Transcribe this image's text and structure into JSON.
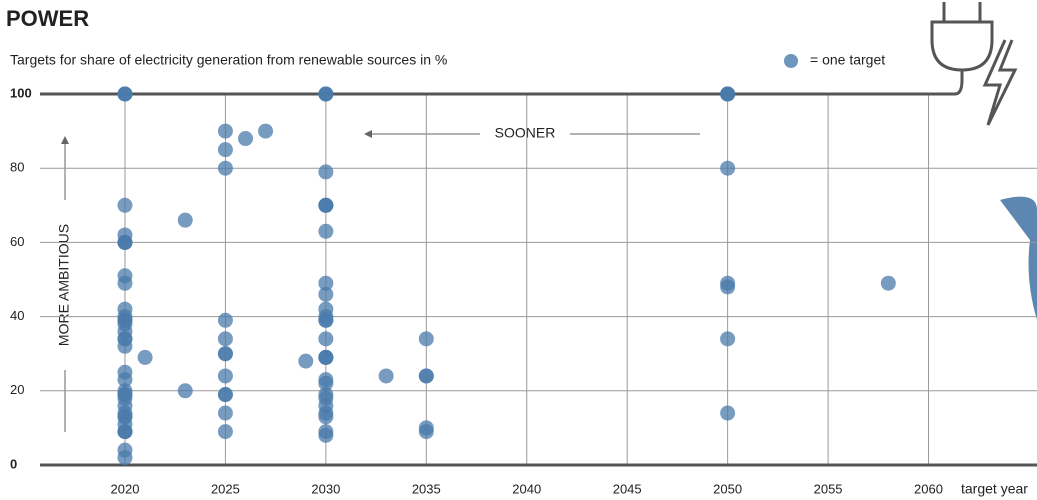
{
  "chart_data": {
    "type": "scatter",
    "title": "POWER",
    "subtitle": "Targets for share of electricity generation from renewable sources in %",
    "legend_label": "= one target",
    "x_label": "target year",
    "annotations": [
      "SOONER",
      "MORE AMBITIOUS"
    ],
    "color": "#4a7bab",
    "xlim": [
      2015.8,
      2065.4
    ],
    "ylim": [
      0,
      100
    ],
    "xticks": [
      2020,
      2025,
      2030,
      2035,
      2040,
      2045,
      2050,
      2055,
      2060
    ],
    "yticks": [
      0,
      20,
      40,
      60,
      80,
      100
    ],
    "grid": true,
    "x": [
      2020,
      2020,
      2020,
      2020,
      2020,
      2020,
      2020,
      2020,
      2020,
      2020,
      2020,
      2020,
      2020,
      2020,
      2020,
      2020,
      2020,
      2020,
      2020,
      2020,
      2020,
      2020,
      2020,
      2020,
      2020,
      2020,
      2020,
      2020,
      2020,
      2020,
      2020,
      2020,
      2020,
      2020,
      2020,
      2021,
      2023,
      2023,
      2025,
      2025,
      2025,
      2025,
      2025,
      2025,
      2025,
      2025,
      2025,
      2025,
      2025,
      2025,
      2026,
      2027,
      2029,
      2030,
      2030,
      2030,
      2030,
      2030,
      2030,
      2030,
      2030,
      2030,
      2030,
      2030,
      2030,
      2030,
      2030,
      2030,
      2030,
      2030,
      2030,
      2030,
      2030,
      2030,
      2030,
      2030,
      2030,
      2030,
      2030,
      2030,
      2033,
      2035,
      2035,
      2035,
      2035,
      2035,
      2050,
      2050,
      2050,
      2050,
      2050,
      2050,
      2050,
      2050,
      2050,
      2058
    ],
    "values": [
      100,
      100,
      100,
      70,
      62,
      60,
      60,
      60,
      51,
      49,
      42,
      40,
      39,
      39,
      38,
      36,
      34,
      34,
      32,
      25,
      23,
      20,
      19,
      19,
      18,
      16,
      14,
      13,
      13,
      11,
      9,
      9,
      9,
      4,
      2,
      29,
      66,
      20,
      90,
      85,
      80,
      39,
      34,
      30,
      30,
      24,
      19,
      19,
      14,
      9,
      88,
      90,
      28,
      100,
      100,
      100,
      79,
      70,
      70,
      70,
      63,
      49,
      46,
      42,
      40,
      39,
      39,
      34,
      29,
      29,
      29,
      23,
      22,
      19,
      18,
      16,
      14,
      13,
      9,
      8,
      24,
      34,
      24,
      24,
      10,
      9,
      100,
      100,
      100,
      100,
      80,
      49,
      48,
      34,
      14,
      49
    ]
  }
}
